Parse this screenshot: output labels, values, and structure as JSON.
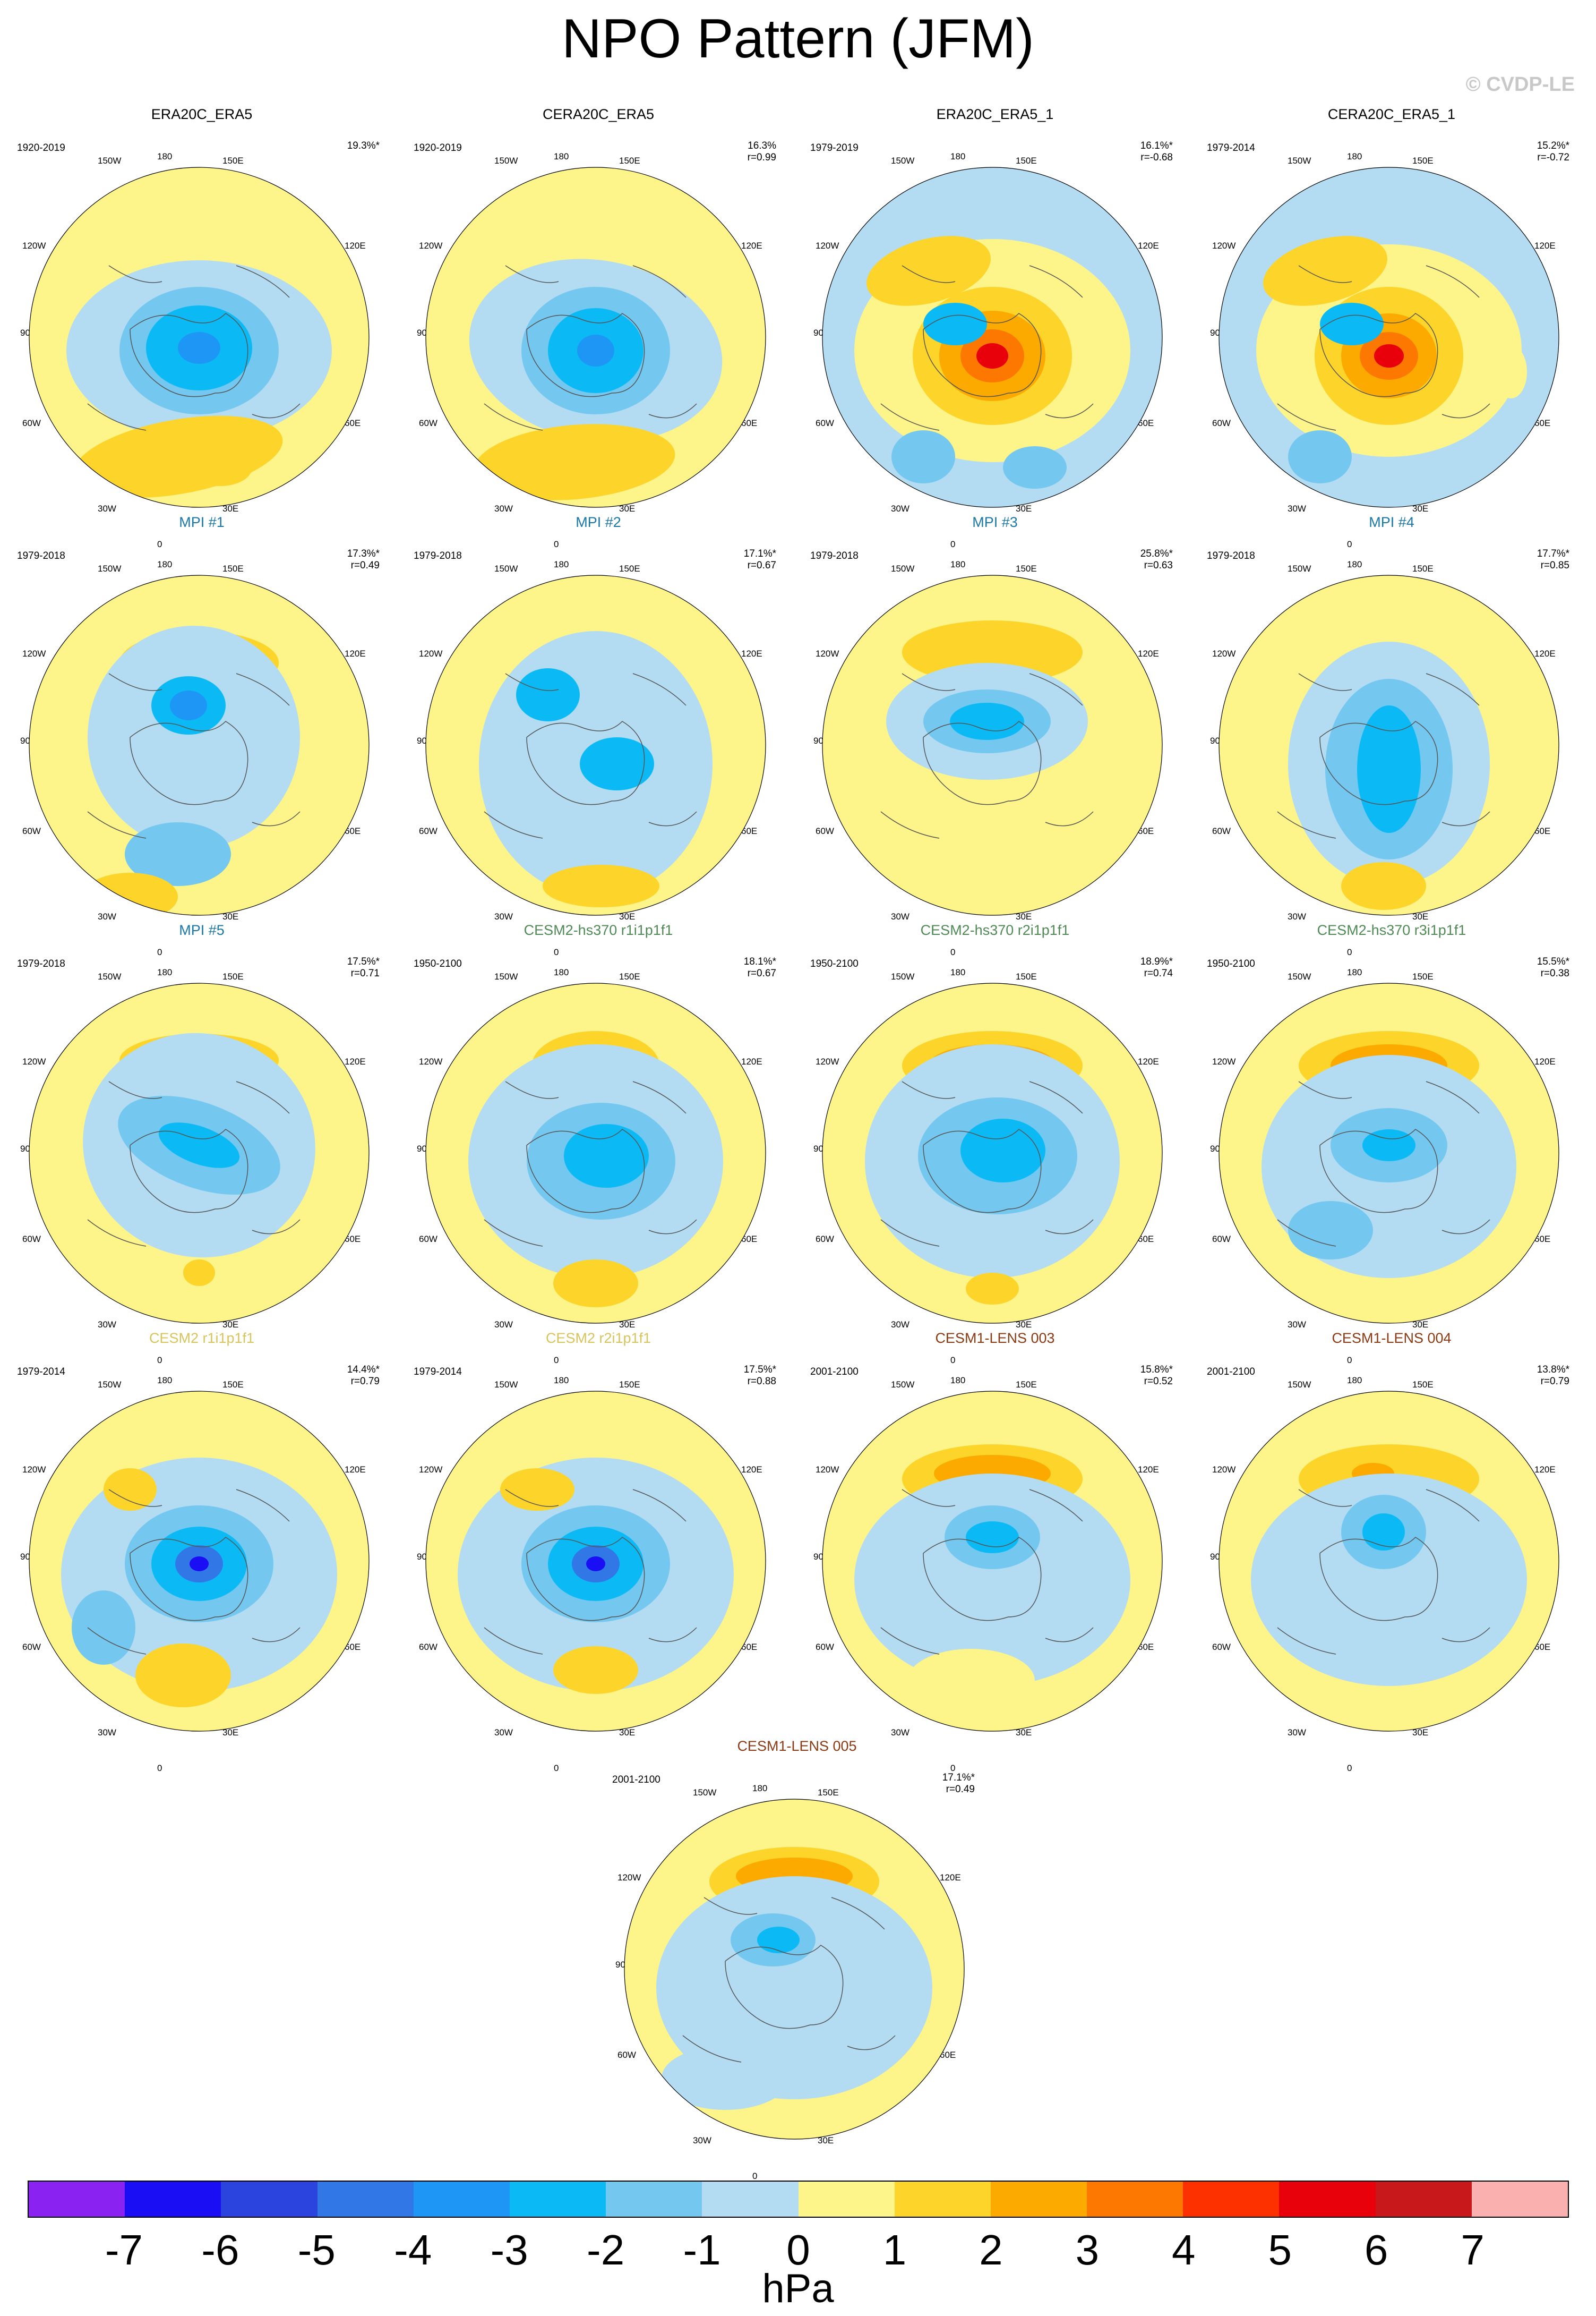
{
  "title": "NPO Pattern (JFM)",
  "credit": "© CVDP-LE",
  "longitude_labels": {
    "top": "180",
    "bottom": "0",
    "upper_left": "150W",
    "upper_right": "150E",
    "left_upper": "120W",
    "right_upper": "120E",
    "left": "90W",
    "right": "90E",
    "left_lower": "60W",
    "right_lower": "60E",
    "lower_left": "30W",
    "lower_right": "30E"
  },
  "colors": {
    "title_black": "#000000",
    "title_blue": "#1a78a8",
    "title_green": "#4f8a55",
    "title_gold": "#d7c45a",
    "title_brown": "#8b3a14"
  },
  "panels": [
    {
      "title": "ERA20C_ERA5",
      "title_color": "#000000",
      "period": "1920-2019",
      "stat": "19.3%*",
      "r": ""
    },
    {
      "title": "CERA20C_ERA5",
      "title_color": "#000000",
      "period": "1920-2019",
      "stat": "16.3%",
      "r": "r=0.99"
    },
    {
      "title": "ERA20C_ERA5_1",
      "title_color": "#000000",
      "period": "1979-2019",
      "stat": "16.1%*",
      "r": "r=-0.68"
    },
    {
      "title": "CERA20C_ERA5_1",
      "title_color": "#000000",
      "period": "1979-2014",
      "stat": "15.2%*",
      "r": "r=-0.72"
    },
    {
      "title": "MPI #1",
      "title_color": "#1a78a8",
      "period": "1979-2018",
      "stat": "17.3%*",
      "r": "r=0.49"
    },
    {
      "title": "MPI #2",
      "title_color": "#1a78a8",
      "period": "1979-2018",
      "stat": "17.1%*",
      "r": "r=0.67"
    },
    {
      "title": "MPI #3",
      "title_color": "#1a78a8",
      "period": "1979-2018",
      "stat": "25.8%*",
      "r": "r=0.63"
    },
    {
      "title": "MPI #4",
      "title_color": "#1a78a8",
      "period": "1979-2018",
      "stat": "17.7%*",
      "r": "r=0.85"
    },
    {
      "title": "MPI #5",
      "title_color": "#1a78a8",
      "period": "1979-2018",
      "stat": "17.5%*",
      "r": "r=0.71"
    },
    {
      "title": "CESM2-hs370 r1i1p1f1",
      "title_color": "#4f8a55",
      "period": "1950-2100",
      "stat": "18.1%*",
      "r": "r=0.67"
    },
    {
      "title": "CESM2-hs370 r2i1p1f1",
      "title_color": "#4f8a55",
      "period": "1950-2100",
      "stat": "18.9%*",
      "r": "r=0.74"
    },
    {
      "title": "CESM2-hs370 r3i1p1f1",
      "title_color": "#4f8a55",
      "period": "1950-2100",
      "stat": "15.5%*",
      "r": "r=0.38"
    },
    {
      "title": "CESM2 r1i1p1f1",
      "title_color": "#d7c45a",
      "period": "1979-2014",
      "stat": "14.4%*",
      "r": "r=0.79"
    },
    {
      "title": "CESM2 r2i1p1f1",
      "title_color": "#d7c45a",
      "period": "1979-2014",
      "stat": "17.5%*",
      "r": "r=0.88"
    },
    {
      "title": "CESM1-LENS 003",
      "title_color": "#8b3a14",
      "period": "2001-2100",
      "stat": "15.8%*",
      "r": "r=0.52"
    },
    {
      "title": "CESM1-LENS 004",
      "title_color": "#8b3a14",
      "period": "2001-2100",
      "stat": "13.8%*",
      "r": "r=0.79"
    },
    {
      "title": "CESM1-LENS 005",
      "title_color": "#8b3a14",
      "period": "2001-2100",
      "stat": "17.1%*",
      "r": "r=0.49"
    }
  ],
  "colorbar": {
    "units": "hPa",
    "ticks": [
      "-7",
      "-6",
      "-5",
      "-4",
      "-3",
      "-2",
      "-1",
      "0",
      "1",
      "2",
      "3",
      "4",
      "5",
      "6",
      "7"
    ],
    "colors": [
      "#8a22f2",
      "#1a0ef5",
      "#2b44dd",
      "#3178e6",
      "#1e96f5",
      "#0bbaf5",
      "#74c8ef",
      "#b3dcf2",
      "#fdf48a",
      "#fdd42a",
      "#fdaa00",
      "#fd7800",
      "#fd3000",
      "#e8000a",
      "#c8181c",
      "#fbb0b0"
    ]
  }
}
